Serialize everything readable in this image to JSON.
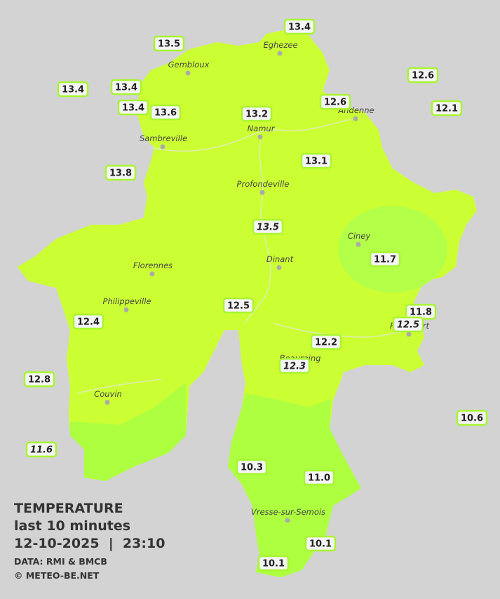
{
  "legend": {
    "title": "TEMPERATURE",
    "period": "last 10 minutes",
    "datetime": "12-10-2025  |  23:10",
    "source": "DATA: RMI & BMCB",
    "copyright": "© METEO-BE.NET"
  },
  "cities": [
    "Eghezee",
    "Gembloux",
    "Andenne",
    "Namur",
    "Sambreville",
    "Profondeville",
    "Ciney",
    "Dinant",
    "Florennes",
    "Philippeville",
    "Rochefort",
    "Beauraing",
    "Couvin",
    "Vresse-sur-Semois"
  ],
  "stations": [
    {
      "value": 13.4
    },
    {
      "value": 13.5
    },
    {
      "value": 13.4
    },
    {
      "value": 13.4
    },
    {
      "value": 13.4
    },
    {
      "value": 13.6
    },
    {
      "value": 13.2
    },
    {
      "value": 12.6
    },
    {
      "value": 12.6
    },
    {
      "value": 12.1
    },
    {
      "value": 13.8
    },
    {
      "value": 13.1
    },
    {
      "value": 13.5,
      "italic": true
    },
    {
      "value": 11.7
    },
    {
      "value": 12.5
    },
    {
      "value": 12.4
    },
    {
      "value": 11.8
    },
    {
      "value": 12.5,
      "italic": true
    },
    {
      "value": 12.2
    },
    {
      "value": 12.3,
      "italic": true
    },
    {
      "value": 12.8
    },
    {
      "value": 10.6
    },
    {
      "value": 11.6,
      "italic": true
    },
    {
      "value": 10.3
    },
    {
      "value": 11,
      "label": "11.0"
    },
    {
      "value": 10.1
    },
    {
      "value": 10.1
    }
  ]
}
